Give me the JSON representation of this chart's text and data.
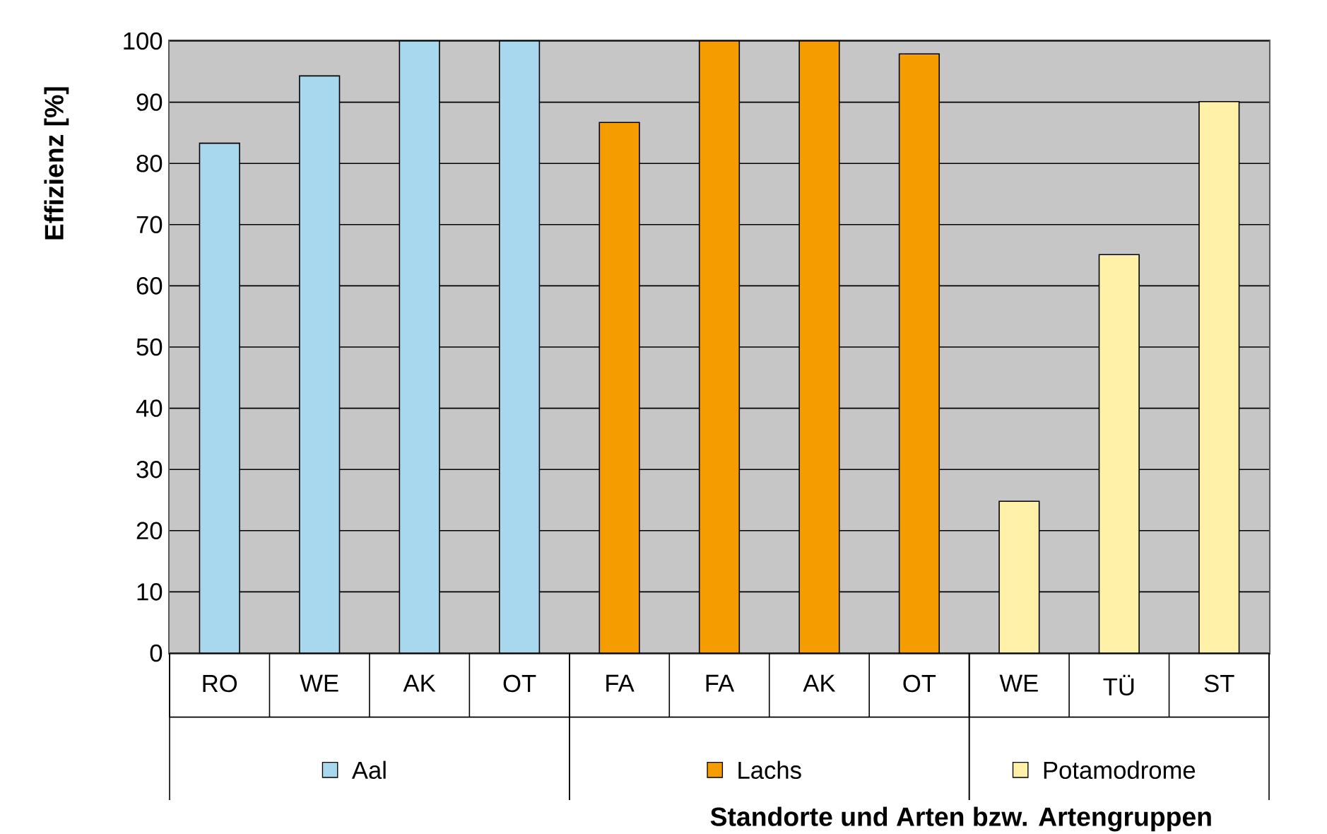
{
  "chart_data": {
    "type": "bar",
    "ylabel": "Effizienz [%]",
    "xlabel": "Standorte und Arten bzw. Artengruppen",
    "categories": [
      "RO",
      "WE",
      "AK",
      "OT",
      "FA",
      "FA",
      "AK",
      "OT",
      "WE",
      "TÜ",
      "ST"
    ],
    "series": [
      {
        "name": "Aal",
        "color": "#a8d8ee",
        "values": [
          83.3,
          94.3,
          100,
          100,
          null,
          null,
          null,
          null,
          null,
          null,
          null
        ]
      },
      {
        "name": "Lachs",
        "color": "#f59c00",
        "values": [
          null,
          null,
          null,
          null,
          86.7,
          100,
          100,
          97.9,
          null,
          null,
          null
        ]
      },
      {
        "name": "Potamodrome",
        "color": "#fff2a8",
        "values": [
          null,
          null,
          null,
          null,
          null,
          null,
          null,
          null,
          24.8,
          65.1,
          90.1
        ]
      }
    ],
    "ylim": [
      0,
      100
    ],
    "yticks": [
      0,
      10,
      20,
      30,
      40,
      50,
      60,
      70,
      80,
      90,
      100
    ],
    "grid": "y",
    "legend": "bottom"
  }
}
